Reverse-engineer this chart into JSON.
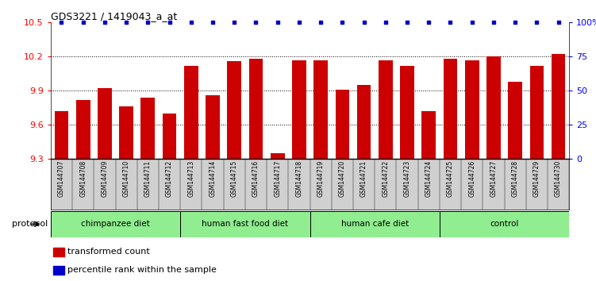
{
  "title": "GDS3221 / 1419043_a_at",
  "samples": [
    "GSM144707",
    "GSM144708",
    "GSM144709",
    "GSM144710",
    "GSM144711",
    "GSM144712",
    "GSM144713",
    "GSM144714",
    "GSM144715",
    "GSM144716",
    "GSM144717",
    "GSM144718",
    "GSM144719",
    "GSM144720",
    "GSM144721",
    "GSM144722",
    "GSM144723",
    "GSM144724",
    "GSM144725",
    "GSM144726",
    "GSM144727",
    "GSM144728",
    "GSM144729",
    "GSM144730"
  ],
  "bar_values": [
    9.72,
    9.82,
    9.92,
    9.76,
    9.84,
    9.7,
    10.12,
    9.86,
    10.16,
    10.18,
    9.35,
    10.17,
    10.17,
    9.91,
    9.95,
    10.17,
    10.12,
    9.72,
    10.18,
    10.17,
    10.2,
    9.98,
    10.12,
    10.22
  ],
  "ylim_left": [
    9.3,
    10.5
  ],
  "ylim_right": [
    0,
    100
  ],
  "yticks_left": [
    9.3,
    9.6,
    9.9,
    10.2,
    10.5
  ],
  "yticks_right": [
    0,
    25,
    50,
    75,
    100
  ],
  "bar_color": "#cc0000",
  "percentile_color": "#0000cc",
  "groups": [
    {
      "label": "chimpanzee diet",
      "start": 0,
      "end": 6
    },
    {
      "label": "human fast food diet",
      "start": 6,
      "end": 12
    },
    {
      "label": "human cafe diet",
      "start": 12,
      "end": 18
    },
    {
      "label": "control",
      "start": 18,
      "end": 24
    }
  ],
  "group_color": "#90ee90",
  "legend_items": [
    {
      "label": "transformed count",
      "color": "#cc0000"
    },
    {
      "label": "percentile rank within the sample",
      "color": "#0000cc"
    }
  ],
  "protocol_label": "protocol",
  "ytick_right_labels": [
    "0",
    "25",
    "50",
    "75",
    "100%"
  ]
}
